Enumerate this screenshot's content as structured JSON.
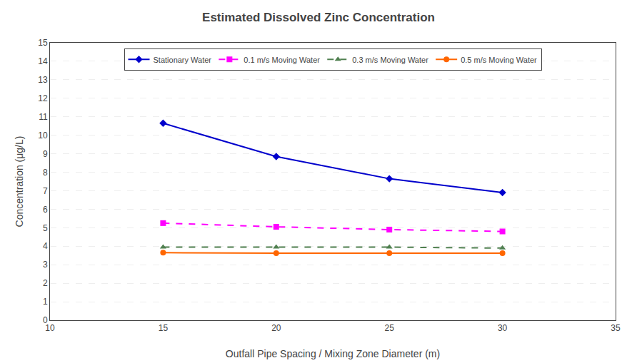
{
  "chart_data": {
    "type": "line",
    "title": "Estimated Dissolved Zinc Concentration",
    "xlabel": "Outfall Pipe Spacing / Mixing Zone Diameter (m)",
    "ylabel": "Concentration (μg/L)",
    "x": [
      15,
      20,
      25,
      30
    ],
    "series": [
      {
        "name": "Stationary Water",
        "color": "#0000CC",
        "marker": "diamond",
        "line_style": "solid",
        "values": [
          10.65,
          8.85,
          7.65,
          6.9
        ]
      },
      {
        "name": "0.1 m/s Moving Water",
        "color": "#FF00FF",
        "marker": "square",
        "line_style": "dashed",
        "values": [
          5.25,
          5.05,
          4.9,
          4.8
        ]
      },
      {
        "name": "0.3 m/s Moving Water",
        "color": "#508050",
        "marker": "triangle-up",
        "line_style": "dashed",
        "values": [
          3.95,
          3.95,
          3.95,
          3.9
        ]
      },
      {
        "name": "0.5 m/s Moving Water",
        "color": "#FF6600",
        "marker": "circle",
        "line_style": "solid",
        "values": [
          3.65,
          3.62,
          3.62,
          3.62
        ]
      }
    ],
    "xlim": [
      10,
      35
    ],
    "ylim": [
      0,
      15
    ],
    "xticks": [
      10,
      15,
      20,
      25,
      30,
      35
    ],
    "yticks": [
      0,
      1,
      2,
      3,
      4,
      5,
      6,
      7,
      8,
      9,
      10,
      11,
      12,
      13,
      14,
      15
    ],
    "grid": "y",
    "legend": "upper center"
  }
}
